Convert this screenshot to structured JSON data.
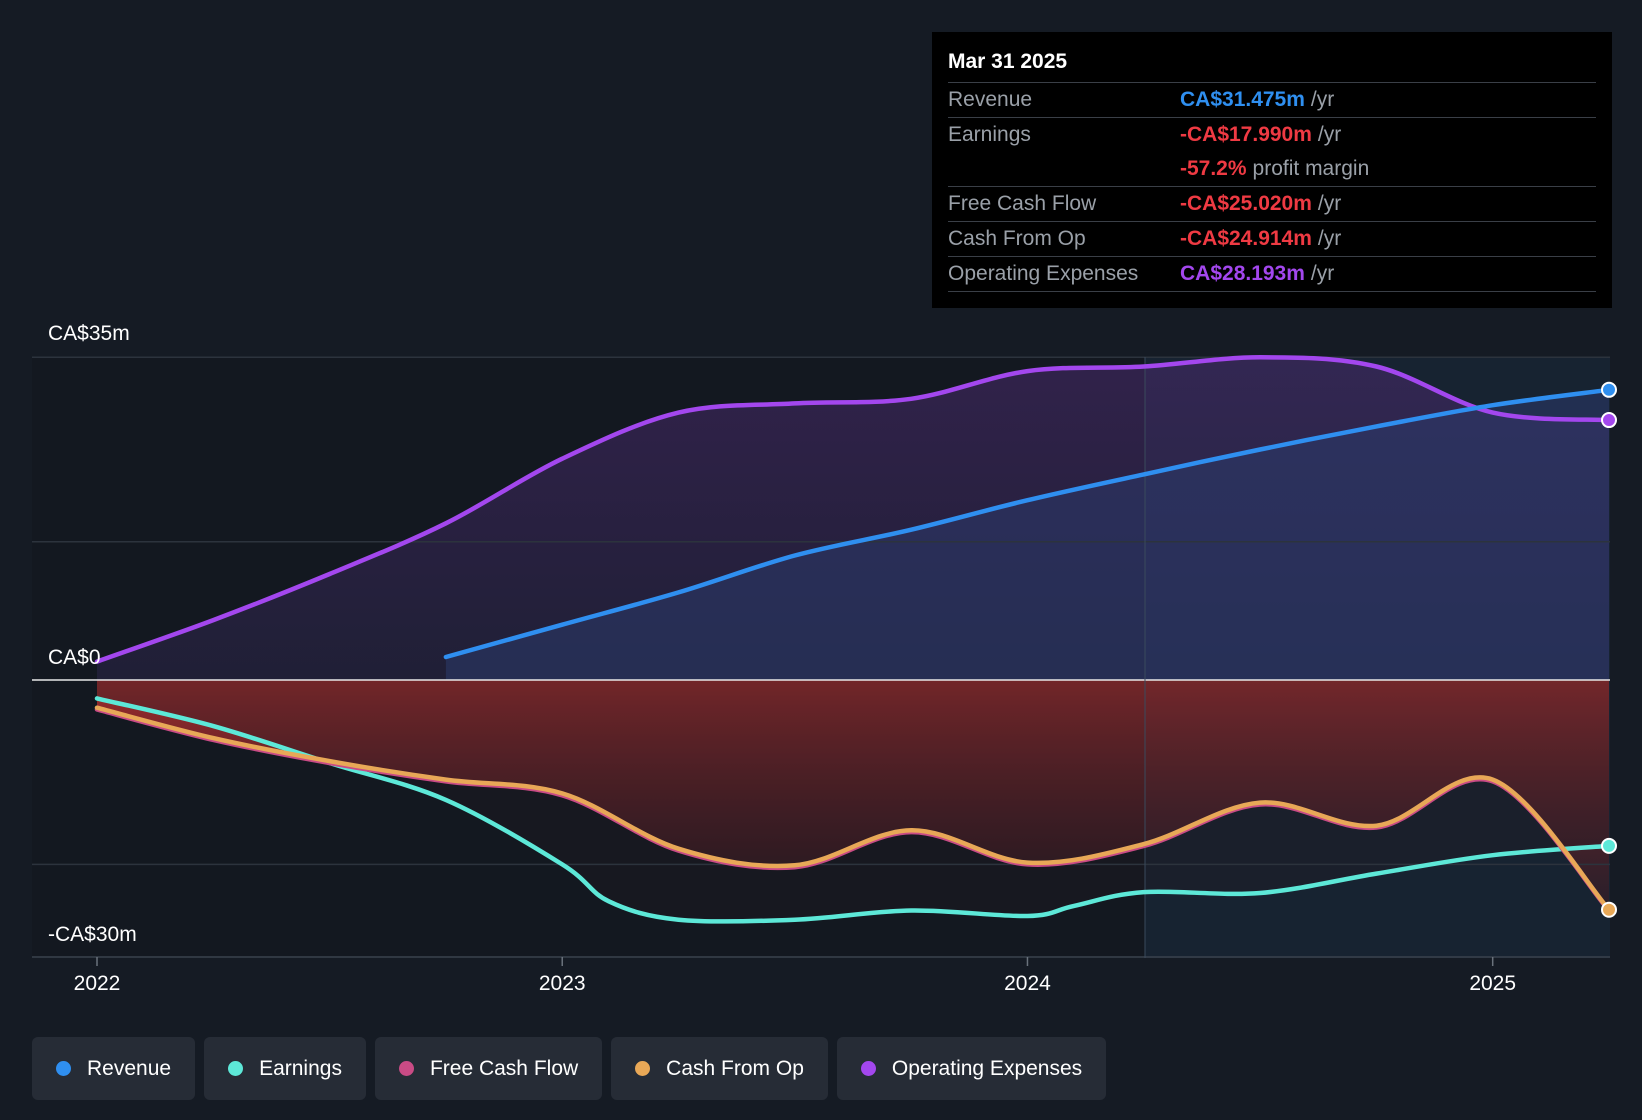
{
  "tooltip": {
    "date": "Mar 31 2025",
    "rows": [
      {
        "label": "Revenue",
        "value": "CA$31.475m",
        "unit": "/yr",
        "color": "#2f8ff0"
      },
      {
        "label": "Earnings",
        "value": "-CA$17.990m",
        "unit": "/yr",
        "color": "#ef3a43"
      },
      {
        "label": "",
        "value": "-57.2%",
        "unit": "profit margin",
        "color": "#ef3a43"
      },
      {
        "label": "Free Cash Flow",
        "value": "-CA$25.020m",
        "unit": "/yr",
        "color": "#ef3a43"
      },
      {
        "label": "Cash From Op",
        "value": "-CA$24.914m",
        "unit": "/yr",
        "color": "#ef3a43"
      },
      {
        "label": "Operating Expenses",
        "value": "CA$28.193m",
        "unit": "/yr",
        "color": "#a347ee"
      }
    ]
  },
  "legend": [
    {
      "label": "Revenue",
      "color": "#2f8ff0"
    },
    {
      "label": "Earnings",
      "color": "#5de8d8"
    },
    {
      "label": "Free Cash Flow",
      "color": "#c94b85"
    },
    {
      "label": "Cash From Op",
      "color": "#e8a857"
    },
    {
      "label": "Operating Expenses",
      "color": "#a347ee"
    }
  ],
  "chart_data": {
    "type": "line",
    "y_tick_labels": [
      "CA$35m",
      "CA$0",
      "-CA$30m"
    ],
    "x_tick_labels": [
      "2022",
      "2023",
      "2024",
      "2025"
    ],
    "ylim": [
      -30,
      35
    ],
    "xlim": [
      2022.0,
      2025.25
    ],
    "grid": true,
    "series": [
      {
        "name": "Revenue",
        "color": "#2f8ff0",
        "x": [
          2022.75,
          2023.0,
          2023.25,
          2023.5,
          2023.75,
          2024.0,
          2024.25,
          2024.5,
          2024.75,
          2025.0,
          2025.25
        ],
        "y": [
          2.5,
          6.0,
          9.5,
          13.5,
          16.3,
          19.5,
          22.3,
          25.0,
          27.5,
          29.8,
          31.475
        ]
      },
      {
        "name": "Earnings",
        "color": "#5de8d8",
        "x": [
          2022.0,
          2022.25,
          2022.5,
          2022.75,
          2023.0,
          2023.1,
          2023.25,
          2023.5,
          2023.75,
          2024.0,
          2024.1,
          2024.25,
          2024.5,
          2024.75,
          2025.0,
          2025.25
        ],
        "y": [
          -2.0,
          -5.0,
          -9.0,
          -13.0,
          -20.0,
          -24.0,
          -26.0,
          -26.0,
          -25.0,
          -25.6,
          -24.5,
          -23.0,
          -23.1,
          -21.0,
          -19.0,
          -17.99
        ]
      },
      {
        "name": "Free Cash Flow",
        "color": "#c94b85",
        "x": [
          2022.0,
          2022.25,
          2022.5,
          2022.75,
          2023.0,
          2023.25,
          2023.5,
          2023.75,
          2024.0,
          2024.25,
          2024.5,
          2024.75,
          2025.0,
          2025.25
        ],
        "y": [
          -3.2,
          -6.5,
          -9.0,
          -11.0,
          -12.5,
          -18.5,
          -20.3,
          -16.5,
          -20.0,
          -18.0,
          -13.5,
          -16.0,
          -11.0,
          -25.02
        ]
      },
      {
        "name": "Cash From Op",
        "color": "#e8a857",
        "x": [
          2022.0,
          2022.25,
          2022.5,
          2022.75,
          2023.0,
          2023.25,
          2023.5,
          2023.75,
          2024.0,
          2024.25,
          2024.5,
          2024.75,
          2025.0,
          2025.25
        ],
        "y": [
          -3.0,
          -6.3,
          -8.8,
          -10.8,
          -12.3,
          -18.3,
          -20.1,
          -16.3,
          -19.8,
          -17.8,
          -13.3,
          -15.8,
          -10.8,
          -24.914
        ]
      },
      {
        "name": "Operating Expenses",
        "color": "#a347ee",
        "x": [
          2022.0,
          2022.25,
          2022.5,
          2022.75,
          2023.0,
          2023.25,
          2023.5,
          2023.75,
          2024.0,
          2024.25,
          2024.5,
          2024.75,
          2025.0,
          2025.25
        ],
        "y": [
          2.0,
          6.5,
          11.5,
          17.0,
          24.0,
          29.0,
          30.0,
          30.5,
          33.5,
          34.0,
          35.0,
          34.0,
          29.0,
          28.193
        ]
      }
    ]
  }
}
